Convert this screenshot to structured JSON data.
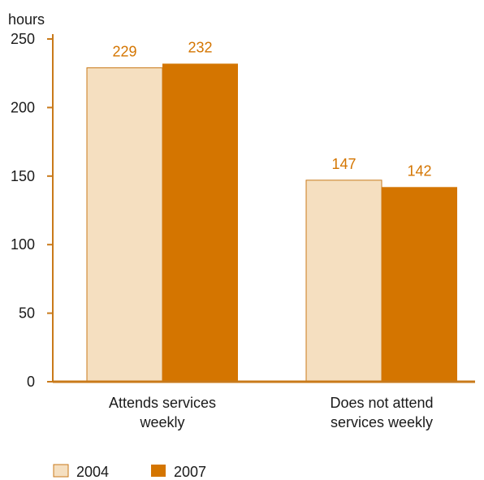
{
  "chart_data": {
    "type": "bar",
    "ylabel": "hours",
    "ylim": [
      0,
      250
    ],
    "yticks": [
      0,
      50,
      100,
      150,
      200,
      250
    ],
    "categories": [
      [
        "Attends services",
        "weekly"
      ],
      [
        "Does not attend",
        "services weekly"
      ]
    ],
    "series": [
      {
        "name": "2004",
        "values": [
          229,
          147
        ],
        "color": "#f5dfc0"
      },
      {
        "name": "2007",
        "values": [
          232,
          142
        ],
        "color": "#d47500"
      }
    ],
    "axis_color": "#c97a1a",
    "label_color": "#d47500",
    "legend_position": "bottom-left",
    "grid": false
  }
}
